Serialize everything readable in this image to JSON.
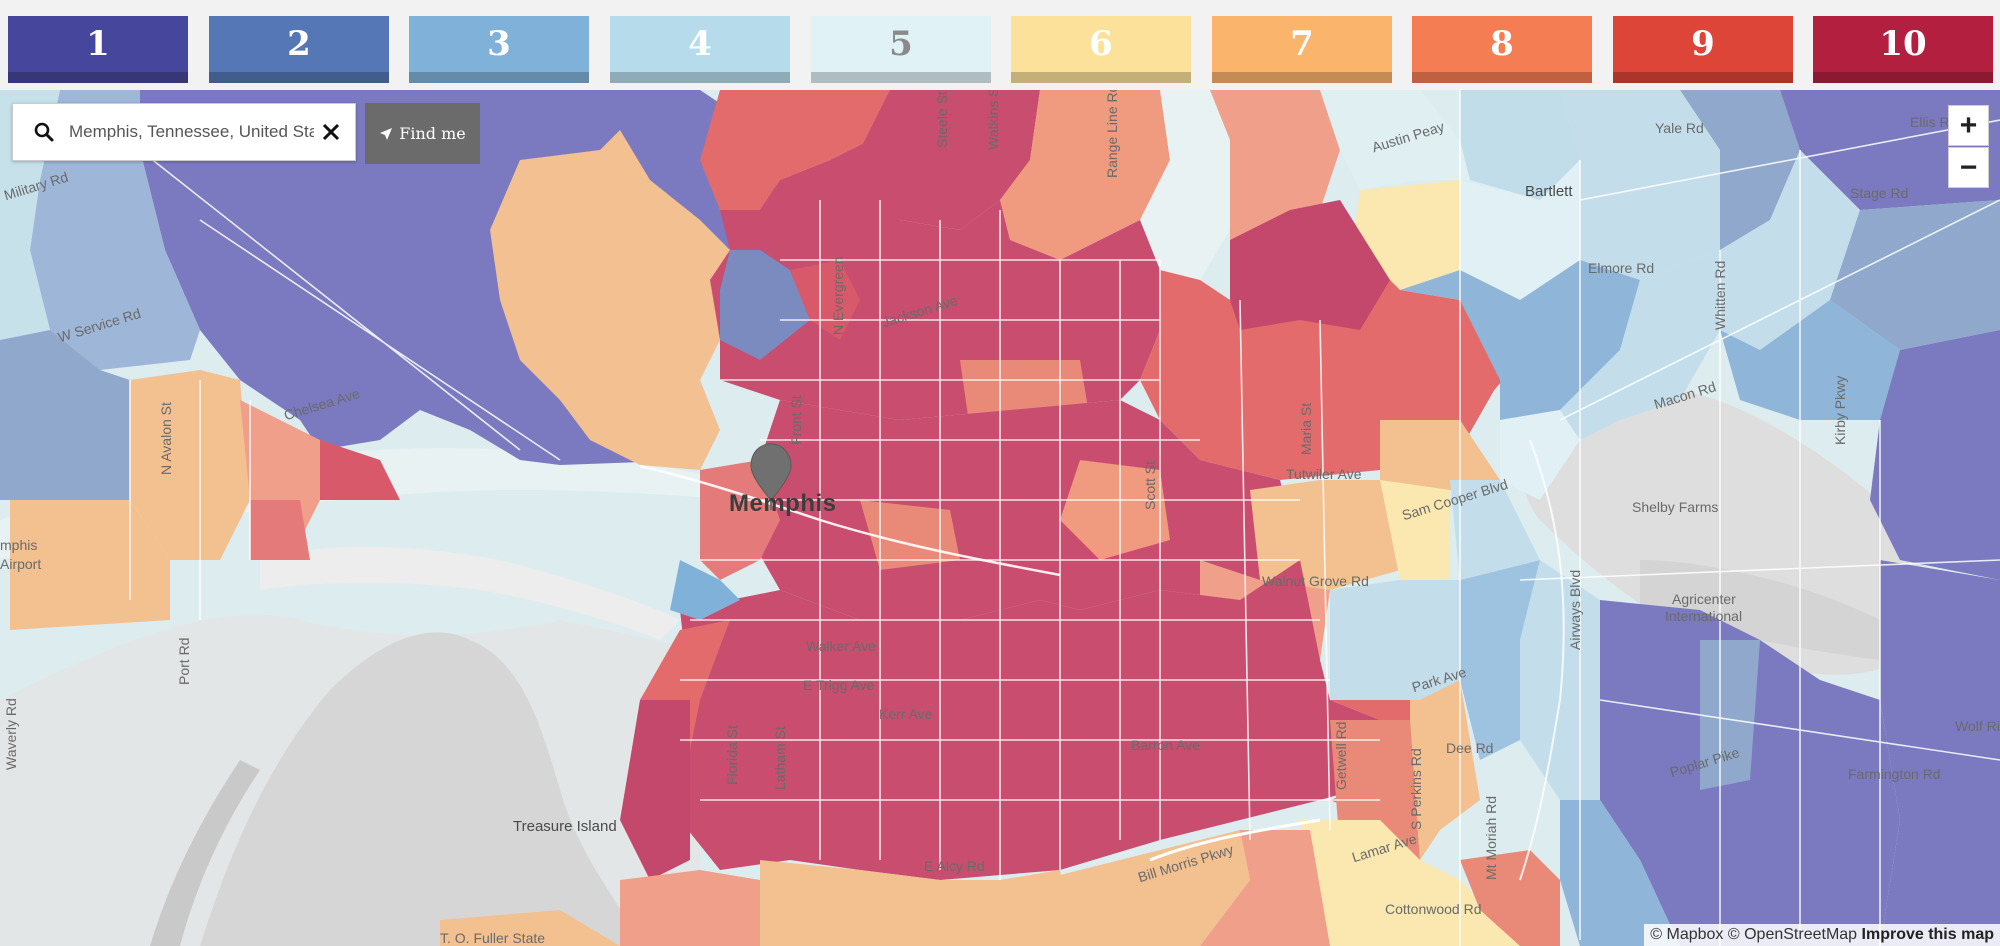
{
  "legend": [
    {
      "label": "1",
      "color": "#46469c",
      "text": "#ffffff"
    },
    {
      "label": "2",
      "color": "#5577b5",
      "text": "#ffffff"
    },
    {
      "label": "3",
      "color": "#80b2d9",
      "text": "#ffffff"
    },
    {
      "label": "4",
      "color": "#b6dcec",
      "text": "#ffffff"
    },
    {
      "label": "5",
      "color": "#e0f2f6",
      "text": "#8a8a8a"
    },
    {
      "label": "6",
      "color": "#fbe19a",
      "text": "#ffffff"
    },
    {
      "label": "7",
      "color": "#fbb46c",
      "text": "#ffffff"
    },
    {
      "label": "8",
      "color": "#f57d53",
      "text": "#ffffff"
    },
    {
      "label": "9",
      "color": "#dd4538",
      "text": "#ffffff"
    },
    {
      "label": "10",
      "color": "#b3203f",
      "text": "#ffffff"
    }
  ],
  "search": {
    "value": "Memphis, Tennessee, United States"
  },
  "find_me": {
    "label": "Find me"
  },
  "zoom": {
    "in": "+",
    "out": "−"
  },
  "map": {
    "city_label": "Memphis",
    "places": [
      "Bartlett",
      "Shelby Farms",
      "Agricenter",
      "International",
      "Treasure Island",
      "mphis",
      "Airport",
      "T. O. Fuller State"
    ],
    "roads": [
      "Military Rd",
      "W Service Rd",
      "N Avalon St",
      "Port Rd",
      "Waverly Rd",
      "Steele St",
      "Range Line Rd",
      "Austin Peay",
      "Yale Rd",
      "Ellis Rd",
      "Stage Rd",
      "Elmore Rd",
      "Whitten Rd",
      "Macon Rd",
      "Tutwiler Ave",
      "Sam Cooper Blvd",
      "Walnut Grove Rd",
      "Park Ave",
      "Dee Rd",
      "Poplar Pike",
      "Farmington Rd",
      "Walker Ave",
      "E Trigg Ave",
      "Kerr Ave",
      "Barron Ave",
      "E Alcy Rd",
      "Florida St",
      "Latham St",
      "Scott St",
      "Maria St",
      "S Perkins Rd",
      "Cottonwood Rd",
      "Airways Blvd",
      "Mt Moriah Rd",
      "Wolf River",
      "Lamar Ave",
      "Bill Morris Pkwy",
      "Getwell Rd",
      "Kirby Pkwy",
      "Watkins St",
      "Jackson Ave",
      "Chelsea Ave",
      "N Evergreen",
      "Front St"
    ]
  },
  "attribution": {
    "mapbox": "© Mapbox",
    "osm": "© OpenStreetMap",
    "improve": "Improve this map"
  }
}
